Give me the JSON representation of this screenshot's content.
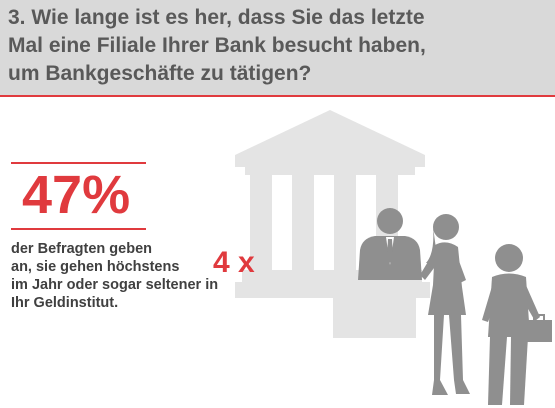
{
  "header": {
    "question": "3. Wie lange ist es her, dass Sie das letzte\nMal eine Filiale Ihrer Bank besucht haben,\num Bankgeschäfte zu tätigen?"
  },
  "stat": {
    "percent": "47%",
    "description_lines": [
      "der Befragten geben",
      "an, sie gehen höchstens",
      "im Jahr oder sogar seltener in",
      "Ihr Geldinstitut."
    ],
    "frequency": "4 x"
  },
  "colors": {
    "accent": "#e03a3e",
    "header_bg": "#d9d9d9",
    "illustration_light": "#e4e4e4",
    "illustration_dark": "#8f8f8f"
  },
  "icons": [
    "bank-building-icon",
    "bank-clerk-icon",
    "woman-walking-icon",
    "businessman-walking-icon"
  ]
}
